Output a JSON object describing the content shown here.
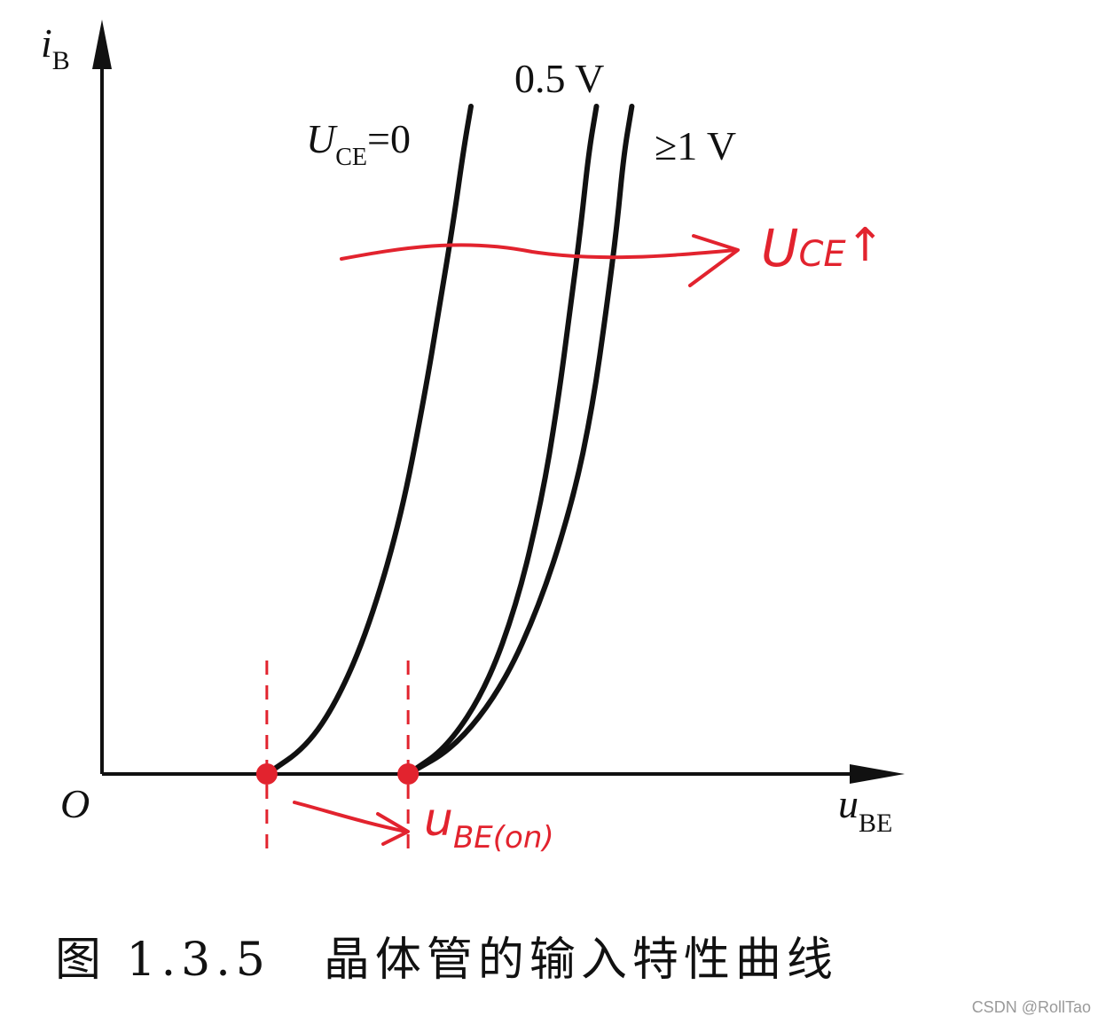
{
  "chart_data": {
    "type": "line",
    "title": "",
    "xlabel": "u",
    "xlabel_sub": "BE",
    "ylabel": "i",
    "ylabel_sub": "B",
    "origin_label": "O",
    "x_range": [
      0,
      1
    ],
    "y_range": [
      0,
      1
    ],
    "grid": false,
    "series": [
      {
        "name": "U_CE=0",
        "label_main": "U",
        "label_sub": "CE",
        "label_tail": "=0",
        "x": [
          0.21,
          0.26,
          0.3,
          0.34,
          0.38,
          0.41,
          0.43,
          0.448,
          0.46,
          0.47
        ],
        "y": [
          0.0,
          0.04,
          0.11,
          0.22,
          0.38,
          0.56,
          0.7,
          0.83,
          0.93,
          1.0
        ]
      },
      {
        "name": "0.5 V",
        "label": "0.5 V",
        "x": [
          0.39,
          0.44,
          0.49,
          0.53,
          0.56,
          0.58,
          0.597,
          0.61,
          0.62,
          0.63
        ],
        "y": [
          0.0,
          0.04,
          0.13,
          0.26,
          0.41,
          0.55,
          0.7,
          0.82,
          0.93,
          1.0
        ]
      },
      {
        "name": "≥1 V",
        "label": "≥1 V",
        "x": [
          0.39,
          0.45,
          0.51,
          0.56,
          0.6,
          0.625,
          0.643,
          0.656,
          0.665,
          0.675
        ],
        "y": [
          0.0,
          0.04,
          0.13,
          0.26,
          0.41,
          0.55,
          0.7,
          0.82,
          0.93,
          1.0
        ]
      }
    ],
    "annotations": {
      "color": "#e2232e",
      "shift_label_main": "U",
      "shift_label_sub": "CE",
      "shift_label_tail": "↑",
      "threshold_label_main": "u",
      "threshold_label_sub": "BE(on)",
      "threshold_x_start": 0.21,
      "threshold_x_end": 0.39
    }
  },
  "caption": {
    "figure_no": "图 1.3.5",
    "title": "晶体管的输入特性曲线"
  },
  "watermark": "CSDN @RollTao"
}
